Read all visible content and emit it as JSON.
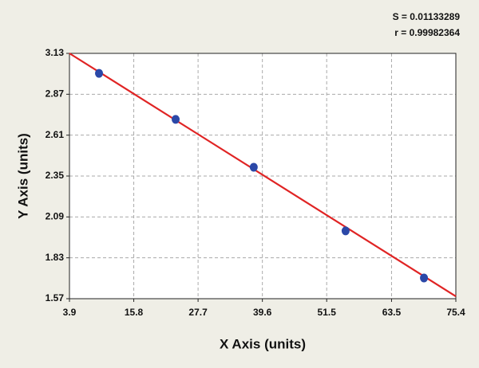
{
  "chart_data": {
    "type": "scatter",
    "x_label": "X Axis (units)",
    "y_label": "Y Axis (units)",
    "annotations": [
      "S = 0.01133289",
      "r = 0.99982364"
    ],
    "x": [
      9.37,
      23.55,
      38.0,
      55.0,
      69.5
    ],
    "values": [
      3.003,
      2.71,
      2.406,
      2.001,
      1.702
    ],
    "color": "#2b48a8",
    "fit_line": {
      "x": [
        3.9,
        75.4
      ],
      "y": [
        3.13,
        1.585
      ],
      "color": "#e02424"
    },
    "xlim": [
      3.9,
      75.4
    ],
    "xticks": [
      3.9,
      15.8,
      27.7,
      39.6,
      51.5,
      63.5,
      75.4
    ],
    "ylim": [
      1.57,
      3.13
    ],
    "yticks": [
      3.13,
      2.87,
      2.61,
      2.35,
      2.09,
      1.83,
      1.57
    ],
    "grid": true
  }
}
